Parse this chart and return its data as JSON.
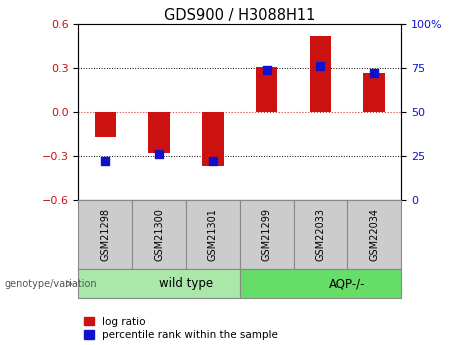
{
  "title": "GDS900 / H3088H11",
  "samples": [
    "GSM21298",
    "GSM21300",
    "GSM21301",
    "GSM21299",
    "GSM22033",
    "GSM22034"
  ],
  "log_ratio": [
    -0.17,
    -0.28,
    -0.37,
    0.31,
    0.52,
    0.27
  ],
  "percentile_rank": [
    22,
    26,
    22,
    74,
    76,
    72
  ],
  "groups": [
    {
      "label": "wild type",
      "start": 0,
      "end": 3,
      "color": "#aae8aa"
    },
    {
      "label": "AQP-/-",
      "start": 3,
      "end": 6,
      "color": "#66dd66"
    }
  ],
  "ylim_left": [
    -0.6,
    0.6
  ],
  "ylim_right": [
    0,
    100
  ],
  "yticks_left": [
    -0.6,
    -0.3,
    0.0,
    0.3,
    0.6
  ],
  "yticks_right": [
    0,
    25,
    50,
    75,
    100
  ],
  "bar_color": "#cc1111",
  "dot_color": "#1111cc",
  "bar_width": 0.4,
  "dot_size": 28,
  "legend_items": [
    "log ratio",
    "percentile rank within the sample"
  ],
  "group_label_prefix": "genotype/variation",
  "bg_color": "#ffffff",
  "plot_bg": "#ffffff",
  "zero_line_color": "#dd3333",
  "sample_bg_color": "#cccccc",
  "sample_edge_color": "#888888",
  "group_edge_color": "#888888"
}
